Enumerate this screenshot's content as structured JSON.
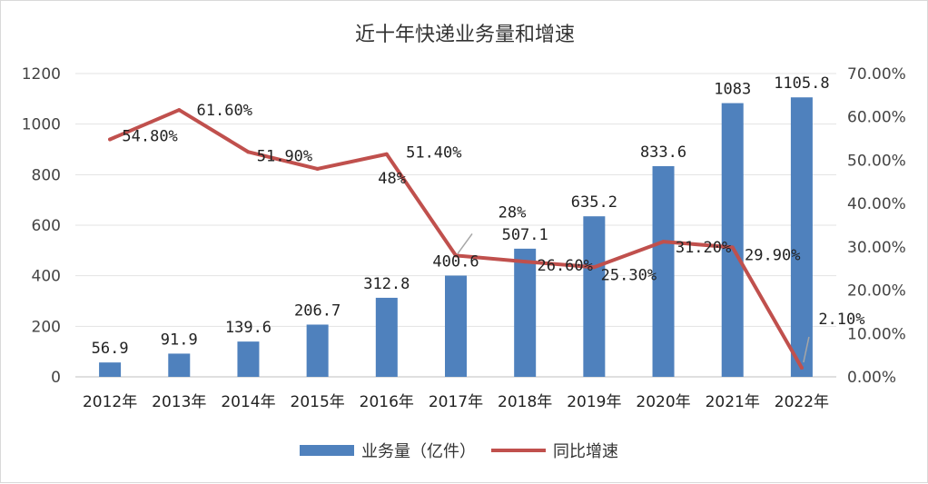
{
  "chart_data": {
    "type": "bar+line",
    "title": "近十年快递业务量和增速",
    "categories": [
      "2012年",
      "2013年",
      "2014年",
      "2015年",
      "2016年",
      "2017年",
      "2018年",
      "2019年",
      "2020年",
      "2021年",
      "2022年"
    ],
    "series": [
      {
        "name": "业务量（亿件）",
        "type": "bar",
        "axis": "left",
        "color": "#4f81bd",
        "values": [
          56.9,
          91.9,
          139.6,
          206.7,
          312.8,
          400.6,
          507.1,
          635.2,
          833.6,
          1083,
          1105.8
        ],
        "labels": [
          "56.9",
          "91.9",
          "139.6",
          "206.7",
          "312.8",
          "400.6",
          "507.1",
          "635.2",
          "833.6",
          "1083",
          "1105.8"
        ]
      },
      {
        "name": "同比增速",
        "type": "line",
        "axis": "right",
        "color": "#c0504d",
        "values": [
          54.8,
          61.6,
          51.9,
          48,
          51.4,
          28,
          26.6,
          25.3,
          31.2,
          29.9,
          2.1
        ],
        "labels": [
          "54.80%",
          "61.60%",
          "51.90%",
          "48%",
          "51.40%",
          "28%",
          "26.60%",
          "25.30%",
          "31.20%",
          "29.90%",
          "2.10%"
        ]
      }
    ],
    "y_left": {
      "min": 0,
      "max": 1200,
      "step": 200,
      "ticks": [
        "0",
        "200",
        "400",
        "600",
        "800",
        "1000",
        "1200"
      ]
    },
    "y_right": {
      "min": 0,
      "max": 70,
      "step": 10,
      "ticks": [
        "0.00%",
        "10.00%",
        "20.00%",
        "30.00%",
        "40.00%",
        "50.00%",
        "60.00%",
        "70.00%"
      ]
    },
    "grid": true,
    "legend_position": "bottom"
  }
}
